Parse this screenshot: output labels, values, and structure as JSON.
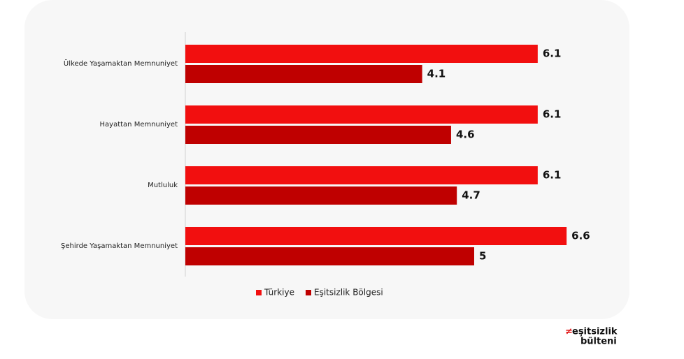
{
  "chart_data": {
    "type": "hbar",
    "categories": [
      "Ülkede Yaşamaktan Memnuniyet",
      "Hayattan Memnuniyet",
      "Mutluluk",
      "Şehirde Yaşamaktan Memnuniyet"
    ],
    "series": [
      {
        "name": "Türkiye",
        "color": "#f20f0f",
        "values": [
          6.1,
          6.1,
          6.1,
          6.6
        ]
      },
      {
        "name": "Eşitsizlik Bölgesi",
        "color": "#bf0000",
        "values": [
          4.1,
          4.6,
          4.7,
          5
        ]
      }
    ],
    "xlim": [
      0,
      7.7
    ],
    "legend": "bottom"
  },
  "logo": {
    "mark": "≠",
    "line1": "eşitsizlik",
    "line2": "bülteni"
  }
}
